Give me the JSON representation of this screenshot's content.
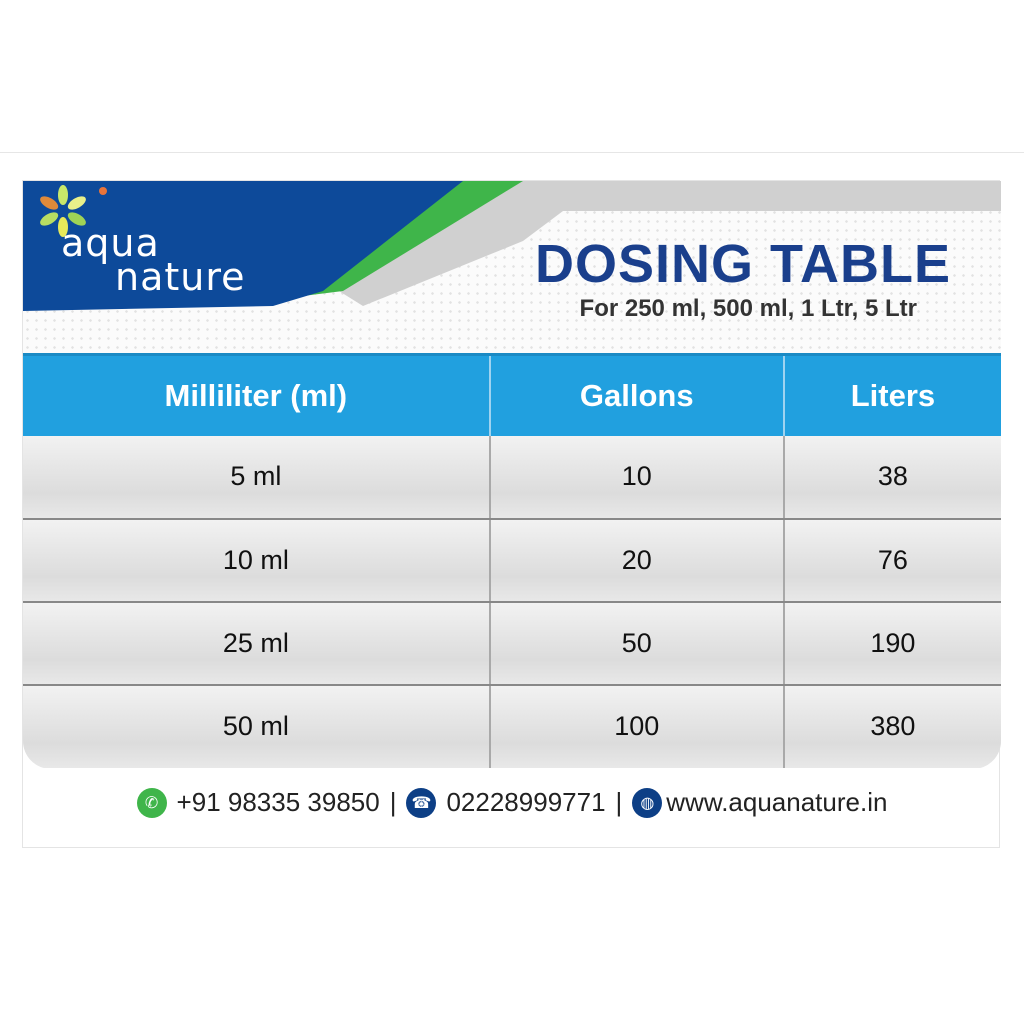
{
  "brand": {
    "line1": "aqua",
    "line2": "nature"
  },
  "title": "DOSING TABLE",
  "subtitle": "For 250 ml, 500 ml, 1 Ltr, 5 Ltr",
  "table": {
    "headers": [
      "Milliliter (ml)",
      "Gallons",
      "Liters"
    ],
    "rows": [
      [
        "5 ml",
        "10",
        "38"
      ],
      [
        "10 ml",
        "20",
        "76"
      ],
      [
        "25 ml",
        "50",
        "190"
      ],
      [
        "50 ml",
        "100",
        "380"
      ]
    ]
  },
  "footer": {
    "whatsapp": "+91 98335 39850",
    "sep": "|",
    "phone": "02228999771",
    "website": "www.aquanature.in",
    "icons": [
      "whatsapp-icon",
      "phone-icon",
      "globe-icon"
    ]
  },
  "colors": {
    "brand_blue": "#0d4a9a",
    "header_blue": "#21a0df",
    "green": "#3fb54a"
  }
}
